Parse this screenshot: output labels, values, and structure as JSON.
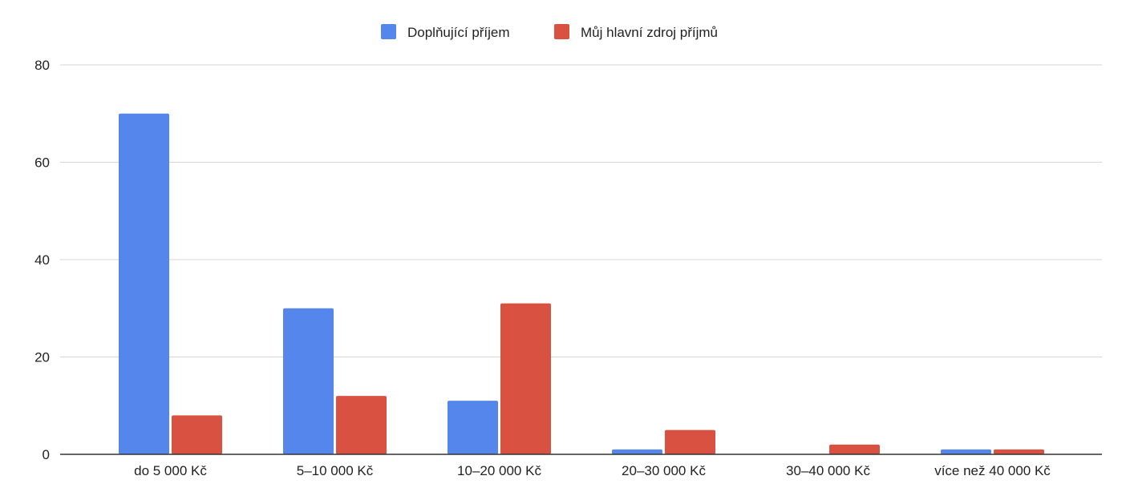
{
  "chart_data": {
    "type": "bar",
    "categories": [
      "do 5 000 Kč",
      "5–10 000 Kč",
      "10–20 000 Kč",
      "20–30 000 Kč",
      "30–40 000 Kč",
      "více než 40 000 Kč"
    ],
    "series": [
      {
        "name": "Doplňující příjem",
        "color": "#5586ec",
        "values": [
          70,
          30,
          11,
          1,
          0,
          1
        ]
      },
      {
        "name": "Můj hlavní zdroj příjmů",
        "color": "#d95140",
        "values": [
          8,
          12,
          31,
          5,
          2,
          1
        ]
      }
    ],
    "y_ticks": [
      "0",
      "20",
      "40",
      "60",
      "80"
    ],
    "ylim": [
      0,
      80
    ],
    "grid": true,
    "legend_position": "top-center",
    "title": "",
    "xlabel": "",
    "ylabel": ""
  }
}
